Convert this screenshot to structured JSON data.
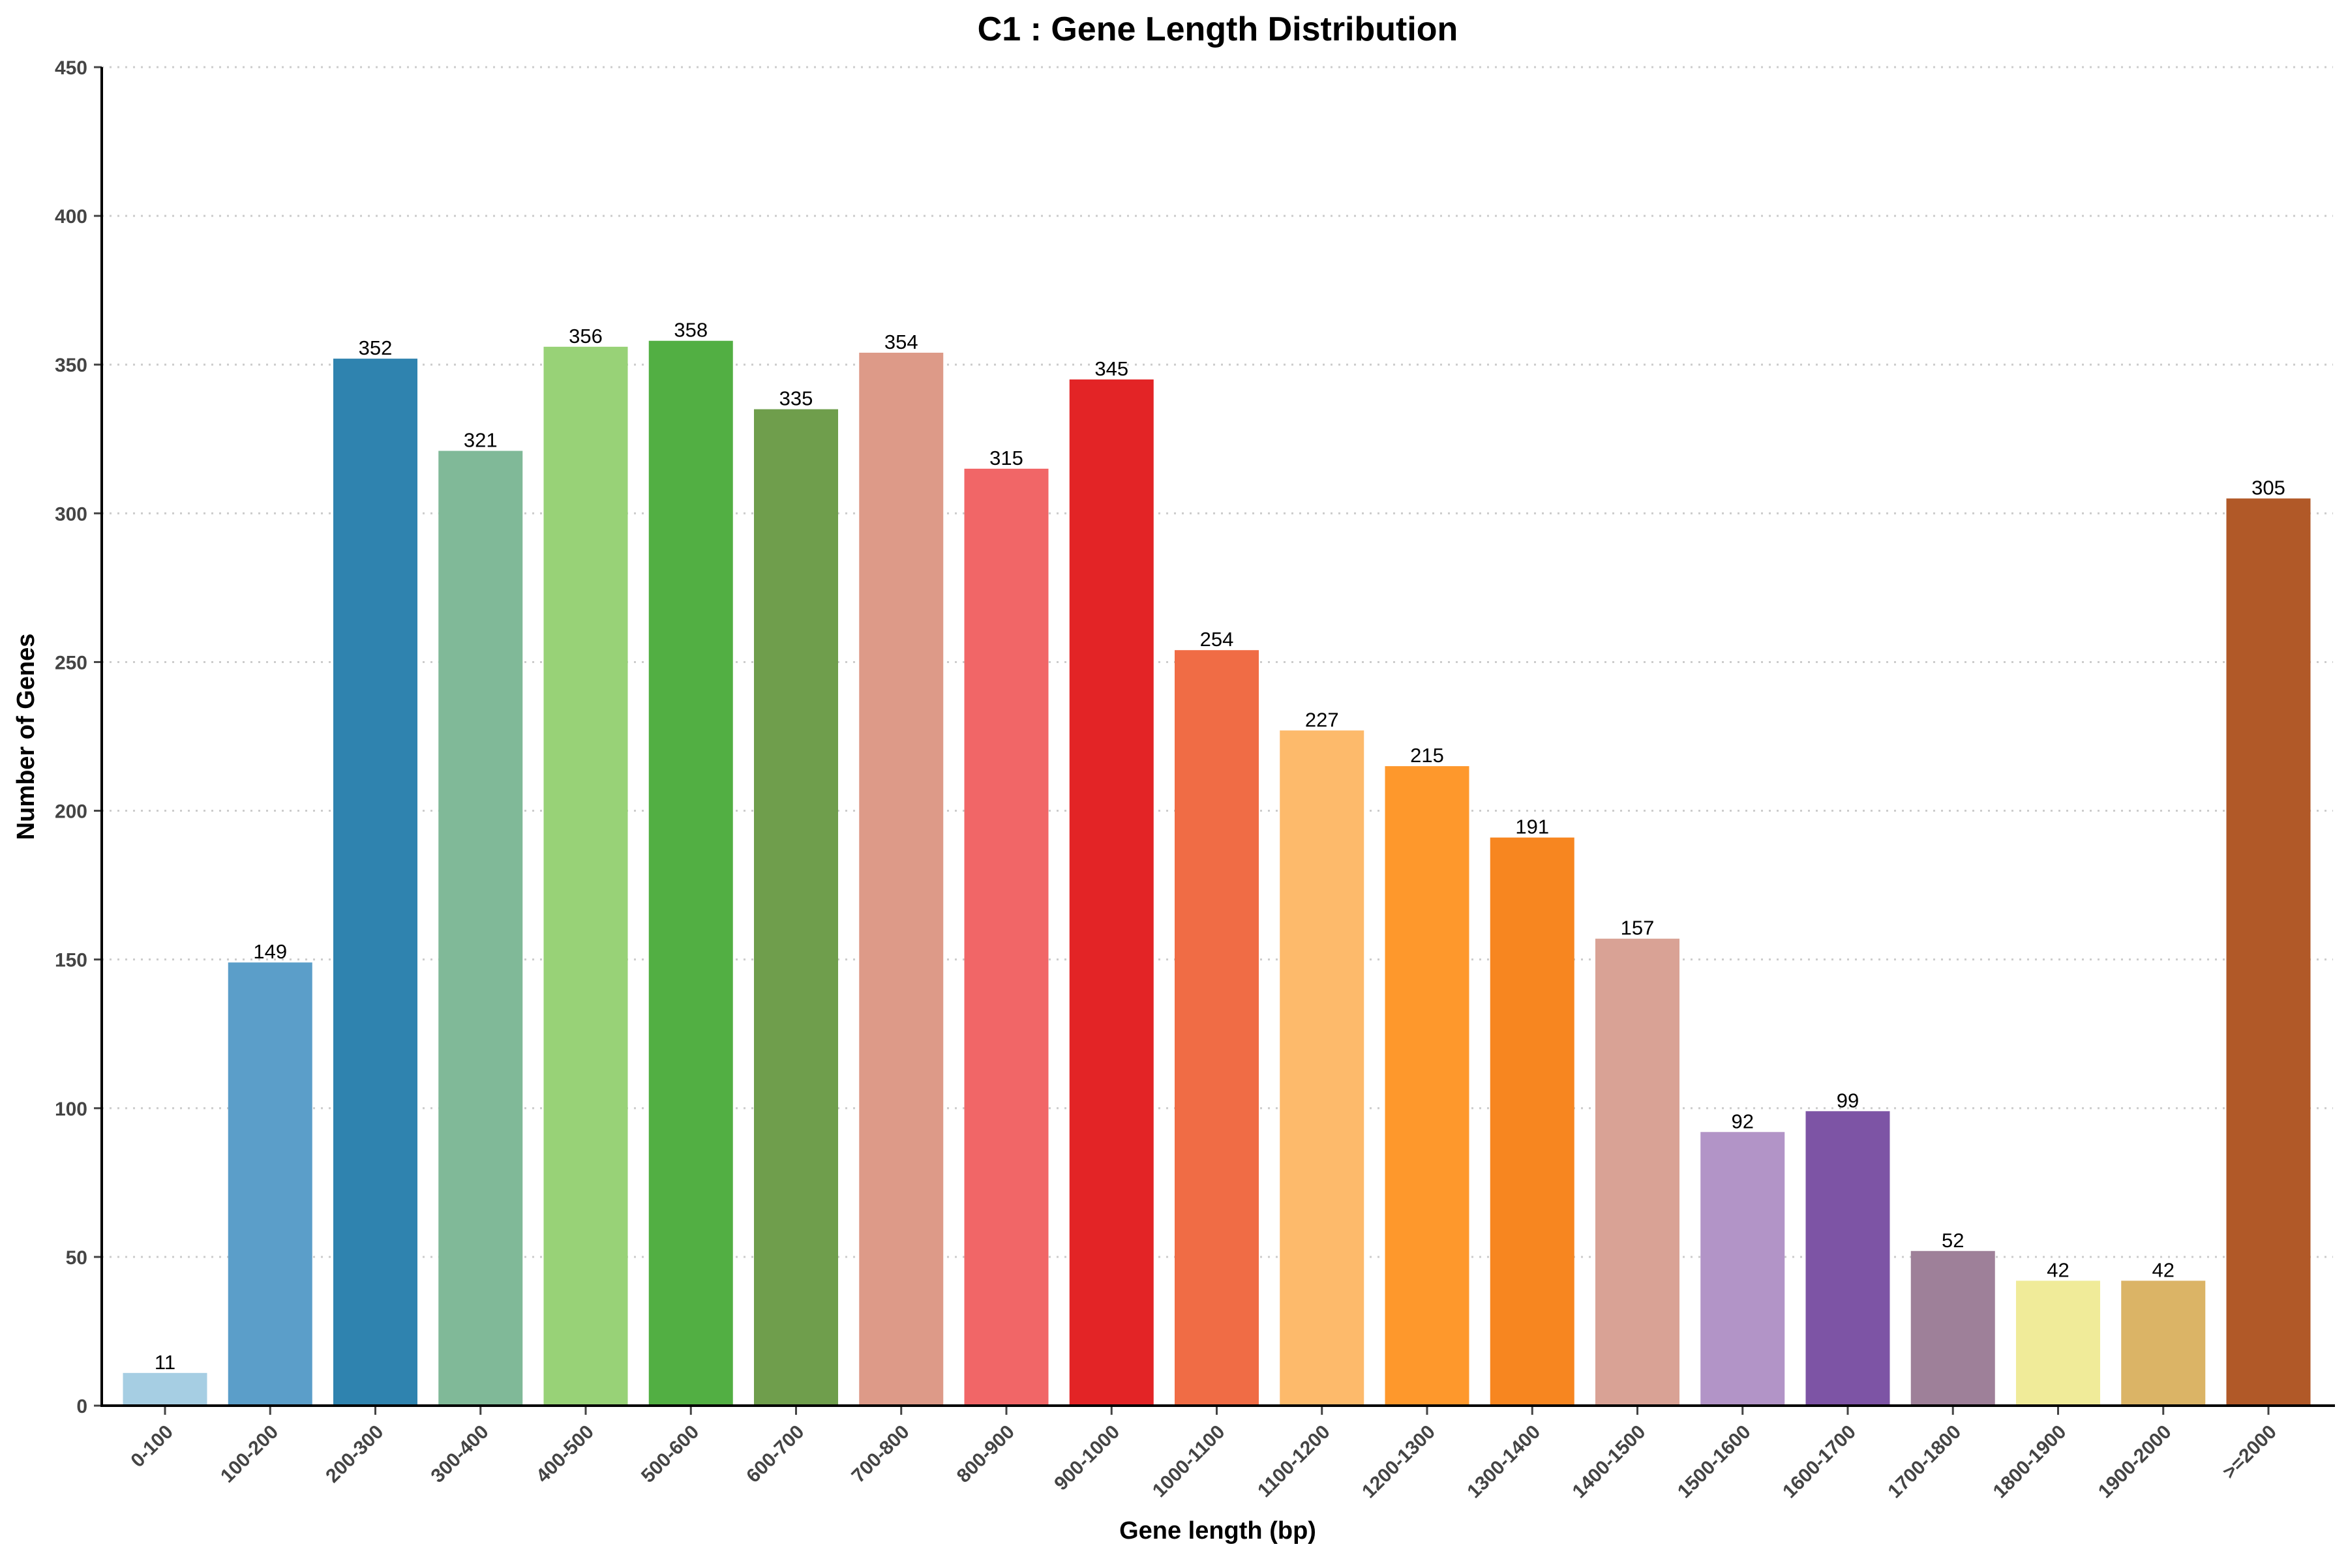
{
  "chart_data": {
    "type": "bar",
    "title": "C1 : Gene Length Distribution",
    "xlabel": "Gene length (bp)",
    "ylabel": "Number of Genes",
    "ylim": [
      0,
      450
    ],
    "yticks": [
      0,
      50,
      100,
      150,
      200,
      250,
      300,
      350,
      400,
      450
    ],
    "grid": "horizontal dotted",
    "categories": [
      "0-100",
      "100-200",
      "200-300",
      "300-400",
      "400-500",
      "500-600",
      "600-700",
      "700-800",
      "800-900",
      "900-1000",
      "1000-1100",
      "1100-1200",
      "1200-1300",
      "1300-1400",
      "1400-1500",
      "1500-1600",
      "1600-1700",
      "1700-1800",
      "1800-1900",
      "1900-2000",
      ">=2000"
    ],
    "values": [
      11,
      149,
      352,
      321,
      356,
      358,
      335,
      354,
      315,
      345,
      254,
      227,
      215,
      191,
      157,
      92,
      99,
      52,
      42,
      42,
      305
    ],
    "colors": [
      "#a6cee3",
      "#5b9ec9",
      "#2f83af",
      "#80b998",
      "#98d277",
      "#52af43",
      "#6f9e4c",
      "#dd9a88",
      "#f16667",
      "#e32426",
      "#f06c45",
      "#fdba6b",
      "#fe982c",
      "#f78620",
      "#d9a295",
      "#b294c7",
      "#7d54a5",
      "#9e8099",
      "#f0eb99",
      "#dbb466",
      "#b15928"
    ]
  }
}
